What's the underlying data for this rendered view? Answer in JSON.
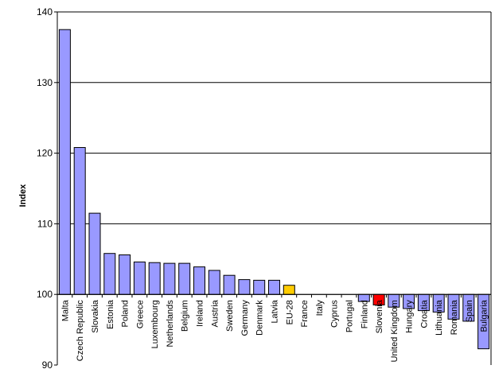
{
  "chart_data": {
    "type": "bar",
    "title": "",
    "xlabel": "",
    "ylabel": "Index",
    "ylim": [
      90,
      140
    ],
    "baseline": 100,
    "yticks": [
      90,
      100,
      110,
      120,
      130,
      140
    ],
    "grid": true,
    "legend": "none",
    "categories": [
      "Malta",
      "Czech Republic",
      "Slovakia",
      "Estonia",
      "Poland",
      "Greece",
      "Luxembourg",
      "Netherlands",
      "Belgium",
      "Ireland",
      "Austria",
      "Sweden",
      "Germany",
      "Denmark",
      "Latvia",
      "EU-28",
      "France",
      "Italy",
      "Cyprus",
      "Portugal",
      "Finland",
      "Slovenia",
      "United Kingdom",
      "Hungary",
      "Croatia",
      "Lithuania",
      "Romania",
      "Spain",
      "Bulgaria"
    ],
    "values": [
      137.5,
      120.8,
      111.5,
      105.8,
      105.6,
      104.6,
      104.5,
      104.4,
      104.4,
      103.9,
      103.4,
      102.7,
      102.1,
      102.0,
      102.0,
      101.3,
      100.0,
      100.0,
      100.0,
      100.0,
      99.0,
      98.5,
      98.2,
      98.0,
      97.7,
      97.5,
      96.5,
      96.2,
      92.3
    ],
    "colors": {
      "default": "#9999ff",
      "EU-28": "#ffcc00",
      "Slovenia": "#ff0000",
      "gridline": "#000000",
      "bar_outline": "#000000"
    }
  }
}
